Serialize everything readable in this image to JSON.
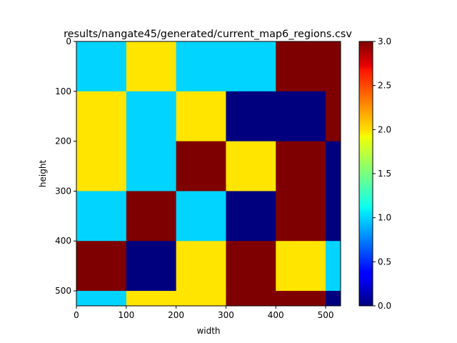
{
  "chart_data": {
    "type": "heatmap",
    "title": "results/nangate45/generated/current_map6_regions.csv",
    "xlabel": "width",
    "ylabel": "height",
    "x_edges": [
      0,
      100,
      200,
      300,
      400,
      500,
      530
    ],
    "y_edges": [
      0,
      100,
      200,
      300,
      400,
      500,
      530
    ],
    "values": [
      [
        1,
        2,
        1,
        1,
        3,
        3
      ],
      [
        2,
        1,
        2,
        0,
        0,
        3
      ],
      [
        2,
        1,
        3,
        2,
        3,
        0
      ],
      [
        1,
        3,
        1,
        0,
        3,
        0
      ],
      [
        3,
        0,
        2,
        3,
        2,
        1
      ],
      [
        1,
        2,
        2,
        3,
        3,
        0
      ]
    ],
    "xlim": [
      0,
      530
    ],
    "ylim": [
      530,
      0
    ],
    "x_ticks": [
      0,
      100,
      200,
      300,
      400,
      500
    ],
    "y_ticks": [
      0,
      100,
      200,
      300,
      400,
      500
    ],
    "colormap": "jet",
    "vmin": 0,
    "vmax": 3,
    "colorbar_ticks": [
      "0.0",
      "0.5",
      "1.0",
      "1.5",
      "2.0",
      "2.5",
      "3.0"
    ],
    "colorbar_tick_values": [
      0,
      0.5,
      1.0,
      1.5,
      2.0,
      2.5,
      3.0
    ],
    "level_colors": [
      "#00007f",
      "#00d4ff",
      "#ffe500",
      "#7f0000"
    ],
    "grid": false
  }
}
